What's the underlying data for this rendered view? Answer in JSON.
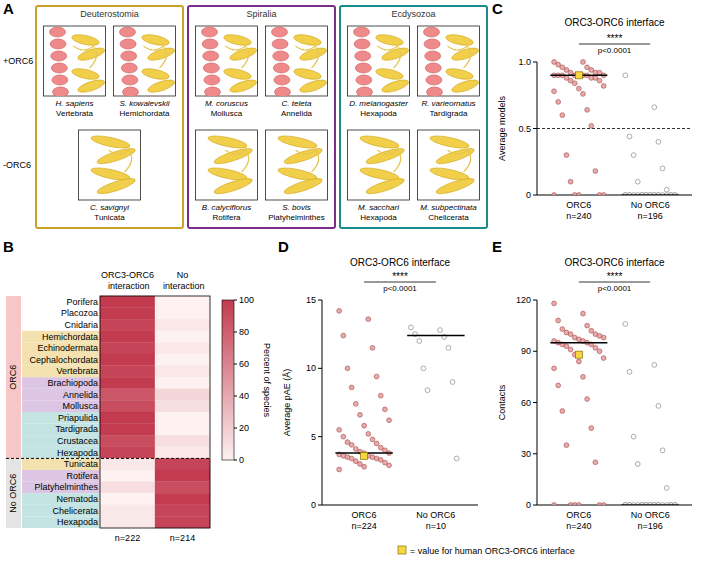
{
  "panel_a": {
    "letter": "A",
    "row_labels": [
      "+ORC6",
      "-ORC6"
    ],
    "groups": [
      {
        "name": "Deuterostomia",
        "color": "#c9a227",
        "species": [
          {
            "name": "H. sapiens",
            "clade": "Vertebrata",
            "orc6": true
          },
          {
            "name": "S. kowalevskii",
            "clade": "Hemichordata",
            "orc6": true
          },
          {
            "name": "C. savignyi",
            "clade": "Tunicata",
            "orc6": false
          }
        ]
      },
      {
        "name": "Spiralia",
        "color": "#7b2d8b",
        "species": [
          {
            "name": "M. coruscus",
            "clade": "Mollusca",
            "orc6": true
          },
          {
            "name": "C. teleta",
            "clade": "Annelida",
            "orc6": true
          },
          {
            "name": "B. calyciflorus",
            "clade": "Rotifera",
            "orc6": false
          },
          {
            "name": "S. bovis",
            "clade": "Platyhelminthes",
            "orc6": false
          }
        ]
      },
      {
        "name": "Ecdysozoa",
        "color": "#1a8a8a",
        "species": [
          {
            "name": "D. melanogaster",
            "clade": "Hexapoda",
            "orc6": true
          },
          {
            "name": "R. varieornatus",
            "clade": "Tardigrada",
            "orc6": true
          },
          {
            "name": "M. sacchari",
            "clade": "Hexapoda",
            "orc6": false
          },
          {
            "name": "M. subpectinata",
            "clade": "Chelicerata",
            "orc6": false
          }
        ]
      }
    ]
  },
  "legend_note": {
    "label": "= value for human ORC3-ORC6 interface",
    "color": "#f5d742"
  },
  "chart_data": [
    {
      "type": "heatmap",
      "letter": "B",
      "columns": [
        "ORC3-ORC6 interaction",
        "No interaction"
      ],
      "n_labels": [
        "n=222",
        "n=214"
      ],
      "groups": [
        {
          "label": "ORC6",
          "color": "#f7c6c6"
        },
        {
          "label": "No ORC6",
          "color": "#e4e4e4"
        }
      ],
      "rows": [
        {
          "label": "Porifera",
          "group": "ORC6",
          "color": "#ffffff",
          "values": [
            100,
            0
          ]
        },
        {
          "label": "Placozoa",
          "group": "ORC6",
          "color": "#ffffff",
          "values": [
            100,
            0
          ]
        },
        {
          "label": "Cnidaria",
          "group": "ORC6",
          "color": "#ffffff",
          "values": [
            95,
            5
          ]
        },
        {
          "label": "Hemichordata",
          "group": "ORC6",
          "color": "#f3e2b0",
          "values": [
            100,
            0
          ]
        },
        {
          "label": "Echinodermata",
          "group": "ORC6",
          "color": "#f3e2b0",
          "values": [
            95,
            5
          ]
        },
        {
          "label": "Cephalochordata",
          "group": "ORC6",
          "color": "#f3e2b0",
          "values": [
            100,
            0
          ]
        },
        {
          "label": "Vertebrata",
          "group": "ORC6",
          "color": "#f3e2b0",
          "values": [
            95,
            5
          ]
        },
        {
          "label": "Brachiopoda",
          "group": "ORC6",
          "color": "#dcc6e3",
          "values": [
            100,
            0
          ]
        },
        {
          "label": "Annelida",
          "group": "ORC6",
          "color": "#dcc6e3",
          "values": [
            85,
            15
          ]
        },
        {
          "label": "Mollusca",
          "group": "ORC6",
          "color": "#dcc6e3",
          "values": [
            90,
            10
          ]
        },
        {
          "label": "Priapulida",
          "group": "ORC6",
          "color": "#c4e3e3",
          "values": [
            100,
            0
          ]
        },
        {
          "label": "Tardigrada",
          "group": "ORC6",
          "color": "#c4e3e3",
          "values": [
            100,
            0
          ]
        },
        {
          "label": "Crustacea",
          "group": "ORC6",
          "color": "#c4e3e3",
          "values": [
            90,
            10
          ]
        },
        {
          "label": "Hexapoda",
          "group": "ORC6",
          "color": "#c4e3e3",
          "values": [
            95,
            5
          ]
        },
        {
          "label": "Tunicata",
          "group": "No ORC6",
          "color": "#f3e2b0",
          "values": [
            5,
            95
          ]
        },
        {
          "label": "Rotifera",
          "group": "No ORC6",
          "color": "#dcc6e3",
          "values": [
            0,
            100
          ]
        },
        {
          "label": "Platyhelminthes",
          "group": "No ORC6",
          "color": "#dcc6e3",
          "values": [
            10,
            90
          ]
        },
        {
          "label": "Nematoda",
          "group": "No ORC6",
          "color": "#c4e3e3",
          "values": [
            0,
            100
          ]
        },
        {
          "label": "Chelicerata",
          "group": "No ORC6",
          "color": "#c4e3e3",
          "values": [
            5,
            95
          ]
        },
        {
          "label": "Hexapoda",
          "group": "No ORC6",
          "color": "#c4e3e3",
          "values": [
            5,
            95
          ]
        }
      ],
      "colorbar": {
        "range": [
          0,
          100
        ],
        "ticks": [
          0,
          20,
          40,
          60,
          80,
          100
        ],
        "label": "Percent of species"
      }
    },
    {
      "type": "strip",
      "letter": "C",
      "title": "ORC3-ORC6 interface",
      "y_label": "Average models",
      "ylim": [
        0,
        1
      ],
      "yticks": [
        0,
        0.5,
        {
          "value": 1,
          "label": "1.0"
        }
      ],
      "reference_line": 0.5,
      "significance": {
        "stars": "****",
        "p_label": "p<0.0001"
      },
      "groups": [
        {
          "name": "ORC6",
          "n_label": "n=240",
          "color": "#e99a9a",
          "median": 0.9,
          "human": 0.9,
          "values": [
            1.0,
            1.0,
            0.98,
            0.96,
            0.96,
            0.94,
            0.94,
            0.92,
            0.92,
            0.92,
            0.9,
            0.9,
            0.9,
            0.9,
            0.9,
            0.9,
            0.9,
            0.9,
            0.88,
            0.88,
            0.88,
            0.86,
            0.86,
            0.84,
            0.82,
            0.8,
            0.78,
            0.76,
            0.7,
            0.64,
            0.6,
            0.52,
            0.3,
            0.18,
            0.1,
            0,
            0,
            0,
            0,
            0
          ]
        },
        {
          "name": "No ORC6",
          "n_label": "n=196",
          "color": "#ffffff",
          "median": 0,
          "values": [
            0.9,
            0.66,
            0.44,
            0.4,
            0.3,
            0.2,
            0.1,
            0.04,
            0,
            0,
            0,
            0,
            0,
            0,
            0,
            0,
            0,
            0,
            0,
            0,
            0,
            0,
            0,
            0,
            0,
            0,
            0,
            0,
            0,
            0
          ]
        }
      ]
    },
    {
      "type": "strip",
      "letter": "D",
      "title": "ORC3-ORC6 interface",
      "y_label": "Average pAE (Å)",
      "ylim": [
        0,
        15
      ],
      "yticks": [
        0,
        5,
        10,
        15
      ],
      "significance": {
        "stars": "****",
        "p_label": "p<0.0001"
      },
      "groups": [
        {
          "name": "ORC6",
          "n_label": "n=224",
          "color": "#e99a9a",
          "median": 3.8,
          "human": 3.6,
          "values": [
            14.2,
            13.6,
            12.4,
            11.5,
            10,
            9.4,
            8.6,
            8,
            7.4,
            7,
            6.6,
            6.2,
            5.8,
            5.5,
            5.2,
            5,
            4.8,
            4.6,
            4.5,
            4.4,
            4.2,
            4.1,
            4,
            3.9,
            3.8,
            3.8,
            3.7,
            3.6,
            3.6,
            3.5,
            3.5,
            3.4,
            3.4,
            3.3,
            3.2,
            3.1,
            3,
            2.9,
            2.8,
            2.6
          ]
        },
        {
          "name": "No ORC6",
          "n_label": "n=10",
          "color": "#ffffff",
          "median": 12.4,
          "values": [
            13,
            12.8,
            12.5,
            12.3,
            12,
            11.5,
            10,
            9,
            8.4,
            3.4
          ]
        }
      ]
    },
    {
      "type": "strip",
      "letter": "E",
      "title": "ORC3-ORC6 interface",
      "y_label": "Contacts",
      "ylim": [
        0,
        120
      ],
      "yticks": [
        0,
        30,
        60,
        90,
        120
      ],
      "significance": {
        "stars": "****",
        "p_label": "p<0.0001"
      },
      "groups": [
        {
          "name": "ORC6",
          "n_label": "n=240",
          "color": "#e99a9a",
          "median": 95,
          "human": 88,
          "values": [
            118,
            112,
            108,
            105,
            103,
            102,
            101,
            100,
            100,
            99,
            98,
            98,
            97,
            96,
            96,
            95,
            95,
            94,
            94,
            93,
            92,
            91,
            90,
            88,
            86,
            84,
            80,
            75,
            70,
            62,
            55,
            45,
            35,
            25,
            0,
            0,
            0,
            0,
            0,
            0
          ]
        },
        {
          "name": "No ORC6",
          "n_label": "n=196",
          "color": "#ffffff",
          "median": 0,
          "values": [
            106,
            82,
            78,
            58,
            40,
            32,
            24,
            10,
            0,
            0,
            0,
            0,
            0,
            0,
            0,
            0,
            0,
            0,
            0,
            0,
            0,
            0,
            0,
            0,
            0,
            0,
            0,
            0,
            0,
            0
          ]
        }
      ]
    }
  ]
}
